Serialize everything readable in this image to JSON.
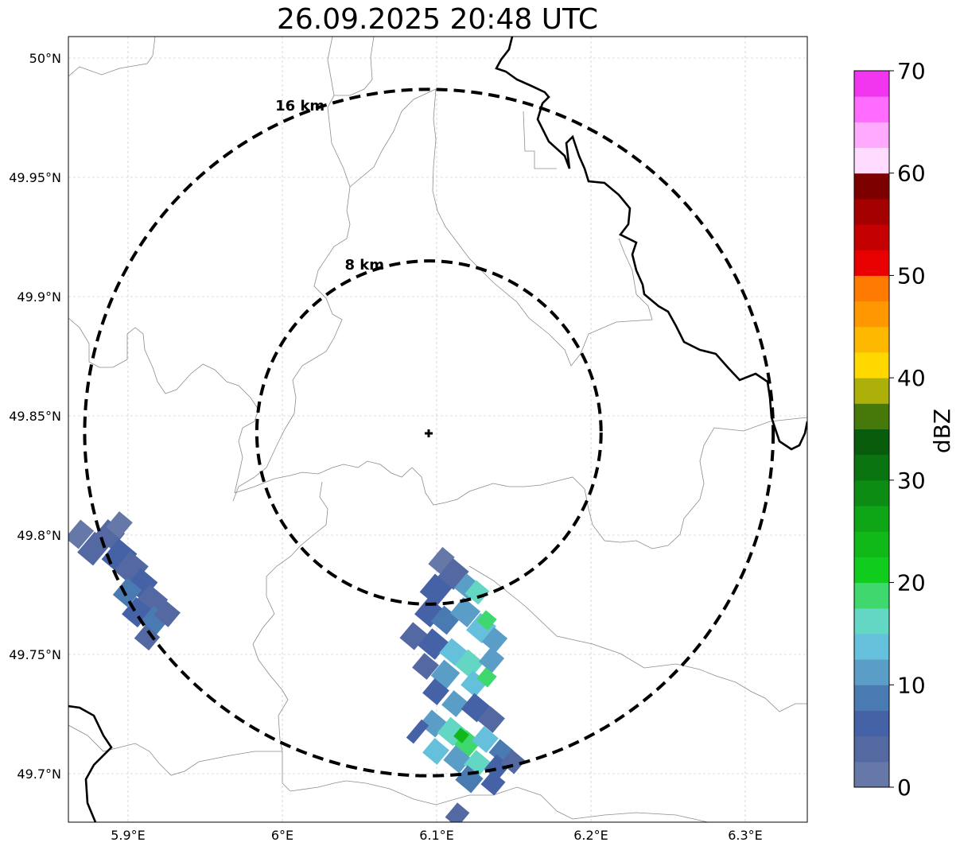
{
  "title": "26.09.2025 20:48 UTC",
  "map": {
    "lat_ticks": [
      "50°N",
      "49.95°N",
      "49.9°N",
      "49.85°N",
      "49.8°N",
      "49.75°N",
      "49.7°N"
    ],
    "lon_ticks": [
      "5.9°E",
      "6°E",
      "6.1°E",
      "6.2°E",
      "6.3°E"
    ],
    "lat_values": [
      50.0,
      49.95,
      49.9,
      49.85,
      49.8,
      49.75,
      49.7
    ],
    "lon_values": [
      5.9,
      6.0,
      6.1,
      6.2,
      6.3
    ],
    "extent": {
      "lon": [
        5.86,
        6.34
      ],
      "lat": [
        49.68,
        50.01
      ]
    },
    "radar_site": {
      "lon": 6.095,
      "lat": 49.843
    },
    "range_rings": [
      {
        "label": "8 km",
        "radius_km": 8
      },
      {
        "label": "16 km",
        "radius_km": 16
      }
    ],
    "gridlines": true
  },
  "colorbar": {
    "label": "dBZ",
    "ticks": [
      "0",
      "10",
      "20",
      "30",
      "40",
      "50",
      "60",
      "70"
    ],
    "min": 0,
    "max": 70,
    "step": 2.5,
    "colors": [
      "#6578a8",
      "#5468a2",
      "#4562a6",
      "#4a7ab2",
      "#5a9ec8",
      "#65c0dc",
      "#64d6c4",
      "#3ed86e",
      "#10cc1c",
      "#10b818",
      "#0ea616",
      "#0c8c12",
      "#0a7410",
      "#085c0c",
      "#46780a",
      "#acb008",
      "#ffd800",
      "#ffb800",
      "#ff9800",
      "#ff7a00",
      "#e80000",
      "#c40000",
      "#a40000",
      "#7c0000",
      "#ffdcff",
      "#ffaaff",
      "#ff6cff",
      "#f236f0"
    ]
  }
}
